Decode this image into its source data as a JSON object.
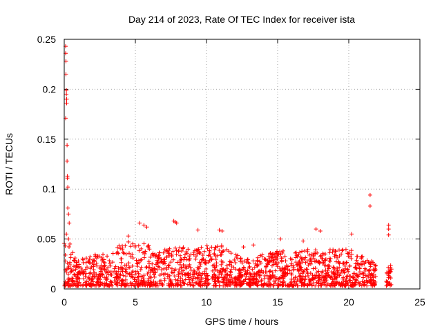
{
  "chart_data": {
    "type": "scatter",
    "title": "Day 214 of 2023, Rate Of TEC Index for receiver ista",
    "xlabel": "GPS time / hours",
    "ylabel": "ROTI / TECUs",
    "xlim": [
      0,
      25
    ],
    "ylim": [
      0,
      0.25
    ],
    "xticks": [
      0,
      5,
      10,
      15,
      20,
      25
    ],
    "xtick_labels": [
      "0",
      "5",
      "10",
      "15",
      "20",
      "25"
    ],
    "yticks": [
      0,
      0.05,
      0.1,
      0.15,
      0.2,
      0.25
    ],
    "ytick_labels": [
      "0",
      "0.05",
      "0.1",
      "0.15",
      "0.2",
      "0.25"
    ],
    "grid": true,
    "marker": "+",
    "color": "#ff0000",
    "series": [
      {
        "name": "ROTI",
        "points": [
          [
            0.1,
            0.243
          ],
          [
            0.1,
            0.236
          ],
          [
            0.12,
            0.228
          ],
          [
            0.12,
            0.215
          ],
          [
            0.15,
            0.199
          ],
          [
            0.15,
            0.195
          ],
          [
            0.17,
            0.19
          ],
          [
            0.17,
            0.186
          ],
          [
            0.1,
            0.171
          ],
          [
            0.2,
            0.144
          ],
          [
            0.2,
            0.128
          ],
          [
            0.22,
            0.113
          ],
          [
            0.22,
            0.111
          ],
          [
            0.25,
            0.102
          ],
          [
            0.25,
            0.081
          ],
          [
            0.3,
            0.075
          ],
          [
            0.35,
            0.066
          ],
          [
            0.15,
            0.055
          ],
          [
            0.3,
            0.05
          ],
          [
            0.4,
            0.045
          ],
          [
            21.5,
            0.094
          ],
          [
            21.5,
            0.083
          ],
          [
            22.8,
            0.064
          ],
          [
            22.8,
            0.06
          ],
          [
            22.8,
            0.054
          ],
          [
            5.3,
            0.066
          ],
          [
            5.6,
            0.064
          ],
          [
            5.8,
            0.062
          ],
          [
            4.5,
            0.053
          ],
          [
            7.7,
            0.068
          ],
          [
            7.8,
            0.067
          ],
          [
            7.9,
            0.066
          ],
          [
            9.4,
            0.059
          ],
          [
            10.9,
            0.059
          ],
          [
            11.1,
            0.058
          ],
          [
            17.7,
            0.06
          ],
          [
            18.0,
            0.058
          ],
          [
            20.2,
            0.055
          ],
          [
            16.8,
            0.048
          ],
          [
            15.2,
            0.05
          ],
          [
            12.6,
            0.042
          ],
          [
            13.3,
            0.044
          ]
        ],
        "band": {
          "description": "dense cluster of ROTI values along the baseline",
          "x_range": [
            0,
            23
          ],
          "y_min": 0.003,
          "y_max_profile": [
            [
              0,
              0.05
            ],
            [
              1,
              0.03
            ],
            [
              2,
              0.035
            ],
            [
              3,
              0.035
            ],
            [
              4,
              0.045
            ],
            [
              5,
              0.05
            ],
            [
              6,
              0.045
            ],
            [
              6.1,
              0.035
            ],
            [
              7,
              0.04
            ],
            [
              8,
              0.045
            ],
            [
              9,
              0.04
            ],
            [
              10,
              0.045
            ],
            [
              11,
              0.045
            ],
            [
              12,
              0.035
            ],
            [
              13,
              0.03
            ],
            [
              14,
              0.035
            ],
            [
              15,
              0.04
            ],
            [
              16,
              0.035
            ],
            [
              17,
              0.04
            ],
            [
              18,
              0.04
            ],
            [
              19,
              0.04
            ],
            [
              20,
              0.04
            ],
            [
              21,
              0.035
            ],
            [
              21.9,
              0.03
            ],
            [
              22.6,
              0.025
            ],
            [
              23.1,
              0.025
            ]
          ],
          "gaps": [
            [
              21.9,
              22.6
            ]
          ]
        }
      }
    ]
  }
}
